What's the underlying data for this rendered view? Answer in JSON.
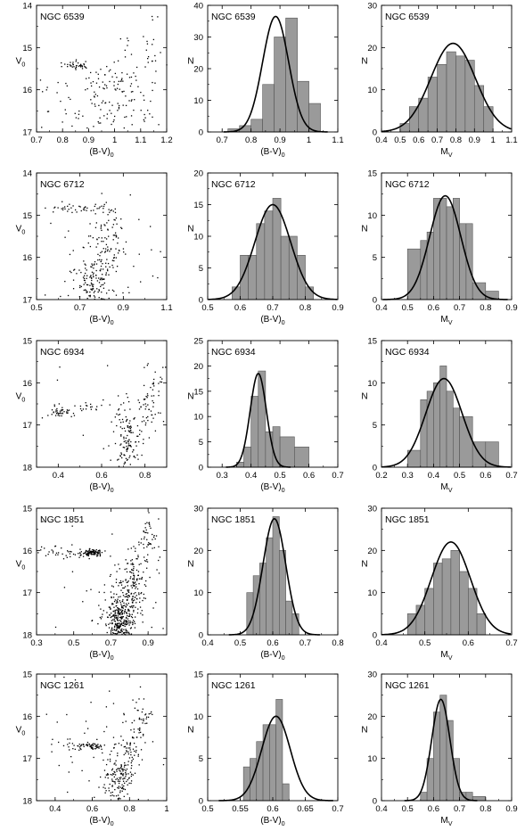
{
  "chart_data": [
    {
      "type": "scatter",
      "panel": "cmd",
      "title": "NGC 6539",
      "xlabel": "(B-V)",
      "xsub": "0",
      "ylabel": "V",
      "ysub": "0",
      "xlim": [
        0.7,
        1.2
      ],
      "ylim": [
        14,
        17
      ],
      "xticks": [
        "0.7",
        "0.8",
        "0.9",
        "1",
        "1.1",
        "1.2"
      ],
      "yticks": [
        "14",
        "15",
        "16",
        "17"
      ],
      "yreversed": true,
      "grid": false,
      "points_description": "sparse red clump near (0.86,15.4); diffuse giant branch 0.95-1.15",
      "clusters": [
        [
          0.86,
          15.42,
          0.025,
          0.05,
          35
        ],
        [
          0.97,
          15.75,
          0.04,
          0.2,
          30
        ],
        [
          1.07,
          15.4,
          0.05,
          0.5,
          35
        ],
        [
          0.95,
          16.4,
          0.15,
          0.45,
          120
        ],
        [
          1.15,
          14.8,
          0.03,
          0.6,
          15
        ]
      ]
    },
    {
      "type": "bar",
      "panel": "hist",
      "title": "NGC 6539",
      "xlabel": "(B-V)",
      "xsub": "0",
      "ylabel": "N",
      "xlim": [
        0.65,
        1.1
      ],
      "ylim": [
        0,
        40
      ],
      "xticks": [
        "0.7",
        "0.8",
        "0.9",
        "1",
        "1.1"
      ],
      "yticks": [
        "0",
        "10",
        "20",
        "30",
        "40"
      ],
      "bin_edges": [
        0.72,
        0.76,
        0.8,
        0.84,
        0.88,
        0.92,
        0.96,
        1.0,
        1.04
      ],
      "values": [
        1,
        2,
        4,
        15,
        30,
        36,
        16,
        9,
        4
      ],
      "fit": {
        "mu": 0.885,
        "sigma": 0.045,
        "peak": 36.5
      }
    },
    {
      "type": "bar",
      "panel": "hist",
      "title": "NGC 6539",
      "xlabel": "M",
      "xsub": "V",
      "ylabel": "N",
      "xlim": [
        0.4,
        1.1
      ],
      "ylim": [
        0,
        30
      ],
      "xticks": [
        "0.4",
        "0.5",
        "0.6",
        "0.7",
        "0.8",
        "0.9",
        "1",
        "1.1"
      ],
      "yticks": [
        "0",
        "10",
        "20",
        "30"
      ],
      "bin_edges": [
        0.5,
        0.55,
        0.6,
        0.65,
        0.7,
        0.75,
        0.8,
        0.85,
        0.9,
        0.95,
        1.0
      ],
      "values": [
        2,
        6,
        8,
        13,
        16,
        19,
        18,
        17,
        11,
        6
      ],
      "fit": {
        "mu": 0.785,
        "sigma": 0.12,
        "peak": 21
      }
    },
    {
      "type": "scatter",
      "panel": "cmd",
      "title": "NGC 6712",
      "xlabel": "(B-V)",
      "xsub": "0",
      "ylabel": "V",
      "ysub": "0",
      "xlim": [
        0.5,
        1.1
      ],
      "ylim": [
        14,
        17
      ],
      "xticks": [
        "0.5",
        "0.7",
        "0.9",
        "1.1"
      ],
      "yticks": [
        "14",
        "15",
        "16",
        "17"
      ],
      "yreversed": true,
      "grid": false,
      "points_description": "horizontal branch near V=14.8; giant branch 0.75-0.9",
      "clusters": [
        [
          0.7,
          14.85,
          0.08,
          0.05,
          40
        ],
        [
          0.82,
          15.8,
          0.05,
          0.5,
          100
        ],
        [
          0.76,
          16.6,
          0.04,
          0.3,
          120
        ],
        [
          0.85,
          15.2,
          0.03,
          0.2,
          20
        ],
        [
          0.8,
          16.2,
          0.2,
          0.6,
          40
        ]
      ]
    },
    {
      "type": "bar",
      "panel": "hist",
      "title": "NGC 6712",
      "xlabel": "(B-V)",
      "xsub": "0",
      "ylabel": "N",
      "xlim": [
        0.5,
        0.9
      ],
      "ylim": [
        0,
        20
      ],
      "xticks": [
        "0.5",
        "0.6",
        "0.7",
        "0.8",
        "0.9"
      ],
      "yticks": [
        "0",
        "5",
        "10",
        "15",
        "20"
      ],
      "bin_edges": [
        0.575,
        0.6,
        0.625,
        0.65,
        0.675,
        0.7,
        0.725,
        0.75,
        0.775,
        0.8,
        0.825
      ],
      "values": [
        2,
        7,
        7,
        12,
        14,
        16,
        10,
        10,
        7,
        2
      ],
      "fit": {
        "mu": 0.7,
        "sigma": 0.055,
        "peak": 15
      }
    },
    {
      "type": "bar",
      "panel": "hist",
      "title": "NGC 6712",
      "xlabel": "M",
      "xsub": "V",
      "ylabel": "N",
      "xlim": [
        0.4,
        0.9
      ],
      "ylim": [
        0,
        15
      ],
      "xticks": [
        "0.4",
        "0.5",
        "0.6",
        "0.7",
        "0.8",
        "0.9"
      ],
      "yticks": [
        "0",
        "5",
        "10",
        "15"
      ],
      "bin_edges": [
        0.5,
        0.55,
        0.575,
        0.6,
        0.625,
        0.65,
        0.675,
        0.7,
        0.725,
        0.75,
        0.8,
        0.85
      ],
      "values": [
        6,
        7,
        8,
        12,
        12,
        11,
        12,
        9,
        9,
        2,
        1
      ],
      "fit": {
        "mu": 0.645,
        "sigma": 0.06,
        "peak": 12.3
      }
    },
    {
      "type": "scatter",
      "panel": "cmd",
      "title": "NGC 6934",
      "xlabel": "(B-V)",
      "xsub": "0",
      "ylabel": "V",
      "ysub": "0",
      "xlim": [
        0.3,
        0.9
      ],
      "ylim": [
        15,
        18
      ],
      "xticks": [
        "0.4",
        "0.6",
        "0.8"
      ],
      "yticks": [
        "15",
        "16",
        "17",
        "18"
      ],
      "yreversed": true,
      "grid": false,
      "points_description": "blue horizontal branch at V~16.7; steep red giant branch",
      "clusters": [
        [
          0.4,
          16.7,
          0.03,
          0.05,
          35
        ],
        [
          0.55,
          16.55,
          0.08,
          0.08,
          25
        ],
        [
          0.72,
          17.4,
          0.03,
          0.4,
          120
        ],
        [
          0.8,
          16.6,
          0.03,
          0.3,
          40
        ],
        [
          0.85,
          16.0,
          0.03,
          0.2,
          20
        ],
        [
          0.65,
          16.5,
          0.2,
          0.6,
          30
        ]
      ]
    },
    {
      "type": "bar",
      "panel": "hist",
      "title": "NGC 6934",
      "xlabel": "(B-V)",
      "xsub": "0",
      "ylabel": "N",
      "xlim": [
        0.25,
        0.7
      ],
      "ylim": [
        0,
        25
      ],
      "xticks": [
        "0.3",
        "0.4",
        "0.5",
        "0.6",
        "0.7"
      ],
      "yticks": [
        "0",
        "5",
        "10",
        "15",
        "20",
        "25"
      ],
      "bin_edges": [
        0.35,
        0.375,
        0.4,
        0.425,
        0.45,
        0.475,
        0.5,
        0.55,
        0.6
      ],
      "values": [
        1,
        4,
        14,
        19,
        7,
        8,
        6,
        4
      ],
      "fit": {
        "mu": 0.425,
        "sigma": 0.028,
        "peak": 18.5
      }
    },
    {
      "type": "bar",
      "panel": "hist",
      "title": "NGC 6934",
      "xlabel": "M",
      "xsub": "V",
      "ylabel": "N",
      "xlim": [
        0.2,
        0.7
      ],
      "ylim": [
        0,
        15
      ],
      "xticks": [
        "0.2",
        "0.3",
        "0.4",
        "0.5",
        "0.6",
        "0.7"
      ],
      "yticks": [
        "0",
        "5",
        "10",
        "15"
      ],
      "bin_edges": [
        0.3,
        0.35,
        0.375,
        0.4,
        0.425,
        0.45,
        0.475,
        0.5,
        0.55,
        0.6,
        0.65
      ],
      "values": [
        2,
        8,
        9,
        10,
        12,
        9,
        7,
        6,
        3,
        3
      ],
      "fit": {
        "mu": 0.44,
        "sigma": 0.07,
        "peak": 10.5
      }
    },
    {
      "type": "scatter",
      "panel": "cmd",
      "title": "NGC 1851",
      "xlabel": "(B-V)",
      "xsub": "0",
      "ylabel": "V",
      "ysub": "0",
      "xlim": [
        0.3,
        1.0
      ],
      "ylim": [
        15,
        18
      ],
      "xticks": [
        "0.3",
        "0.5",
        "0.7",
        "0.9"
      ],
      "yticks": [
        "15",
        "16",
        "17",
        "18"
      ],
      "yreversed": true,
      "grid": false,
      "points_description": "dense red horizontal branch at V~16.05; rich giant branch to V=18",
      "clusters": [
        [
          0.6,
          16.05,
          0.03,
          0.04,
          90
        ],
        [
          0.45,
          16.05,
          0.08,
          0.07,
          40
        ],
        [
          0.75,
          17.6,
          0.04,
          0.35,
          350
        ],
        [
          0.82,
          16.8,
          0.03,
          0.4,
          120
        ],
        [
          0.9,
          15.8,
          0.03,
          0.3,
          50
        ],
        [
          0.7,
          16.8,
          0.25,
          0.8,
          60
        ]
      ]
    },
    {
      "type": "bar",
      "panel": "hist",
      "title": "NGC 1851",
      "xlabel": "(B-V)",
      "xsub": "0",
      "ylabel": "N",
      "xlim": [
        0.4,
        0.8
      ],
      "ylim": [
        0,
        30
      ],
      "xticks": [
        "0.4",
        "0.5",
        "0.6",
        "0.7",
        "0.8"
      ],
      "yticks": [
        "0",
        "10",
        "20",
        "30"
      ],
      "bin_edges": [
        0.52,
        0.54,
        0.56,
        0.58,
        0.6,
        0.62,
        0.64,
        0.66,
        0.68
      ],
      "values": [
        10,
        14,
        17,
        23,
        28,
        20,
        8,
        5
      ],
      "fit": {
        "mu": 0.605,
        "sigma": 0.035,
        "peak": 27.5
      }
    },
    {
      "type": "bar",
      "panel": "hist",
      "title": "NGC 1851",
      "xlabel": "M",
      "xsub": "V",
      "ylabel": "N",
      "xlim": [
        0.4,
        0.7
      ],
      "ylim": [
        0,
        30
      ],
      "xticks": [
        "0.4",
        "0.5",
        "0.6",
        "0.7"
      ],
      "yticks": [
        "0",
        "10",
        "20",
        "30"
      ],
      "bin_edges": [
        0.46,
        0.48,
        0.5,
        0.52,
        0.54,
        0.56,
        0.58,
        0.6,
        0.62,
        0.64
      ],
      "values": [
        5,
        7,
        11,
        17,
        18,
        20,
        15,
        11,
        5
      ],
      "fit": {
        "mu": 0.56,
        "sigma": 0.045,
        "peak": 22
      }
    },
    {
      "type": "scatter",
      "panel": "cmd",
      "title": "NGC 1261",
      "xlabel": "(B-V)",
      "xsub": "0",
      "ylabel": "V",
      "ysub": "0",
      "xlim": [
        0.3,
        1.0
      ],
      "ylim": [
        15,
        18
      ],
      "xticks": [
        "0.4",
        "0.6",
        "0.8",
        "1"
      ],
      "yticks": [
        "15",
        "16",
        "17",
        "18"
      ],
      "yreversed": true,
      "grid": false,
      "points_description": "red horizontal branch at V~16.7; giant branch 0.7-0.85",
      "clusters": [
        [
          0.6,
          16.7,
          0.025,
          0.04,
          45
        ],
        [
          0.5,
          16.7,
          0.05,
          0.06,
          20
        ],
        [
          0.74,
          17.5,
          0.04,
          0.35,
          150
        ],
        [
          0.82,
          16.7,
          0.03,
          0.35,
          60
        ],
        [
          0.87,
          16.0,
          0.03,
          0.25,
          30
        ],
        [
          0.7,
          16.8,
          0.25,
          0.8,
          60
        ]
      ]
    },
    {
      "type": "bar",
      "panel": "hist",
      "title": "NGC 1261",
      "xlabel": "(B-V)",
      "xsub": "0",
      "ylabel": "N",
      "xlim": [
        0.5,
        0.7
      ],
      "ylim": [
        0,
        15
      ],
      "xticks": [
        "0.5",
        "0.55",
        "0.6",
        "0.65",
        "0.7"
      ],
      "yticks": [
        "0",
        "5",
        "10",
        "15"
      ],
      "bin_edges": [
        0.555,
        0.565,
        0.575,
        0.585,
        0.595,
        0.605,
        0.615,
        0.625
      ],
      "values": [
        4,
        5,
        7,
        9,
        9,
        12,
        2
      ],
      "fit": {
        "mu": 0.605,
        "sigma": 0.022,
        "peak": 10
      }
    },
    {
      "type": "bar",
      "panel": "hist",
      "title": "NGC 1261",
      "xlabel": "M",
      "xsub": "V",
      "ylabel": "N",
      "xlim": [
        0.4,
        0.9
      ],
      "ylim": [
        0,
        30
      ],
      "xticks": [
        "0.4",
        "0.5",
        "0.6",
        "0.7",
        "0.8",
        "0.9"
      ],
      "yticks": [
        "0",
        "10",
        "20",
        "30"
      ],
      "bin_edges": [
        0.55,
        0.575,
        0.6,
        0.625,
        0.65,
        0.675,
        0.7,
        0.725,
        0.75,
        0.8
      ],
      "values": [
        2,
        10,
        21,
        25,
        19,
        10,
        2,
        2,
        1
      ],
      "fit": {
        "mu": 0.628,
        "sigma": 0.035,
        "peak": 24
      }
    }
  ]
}
